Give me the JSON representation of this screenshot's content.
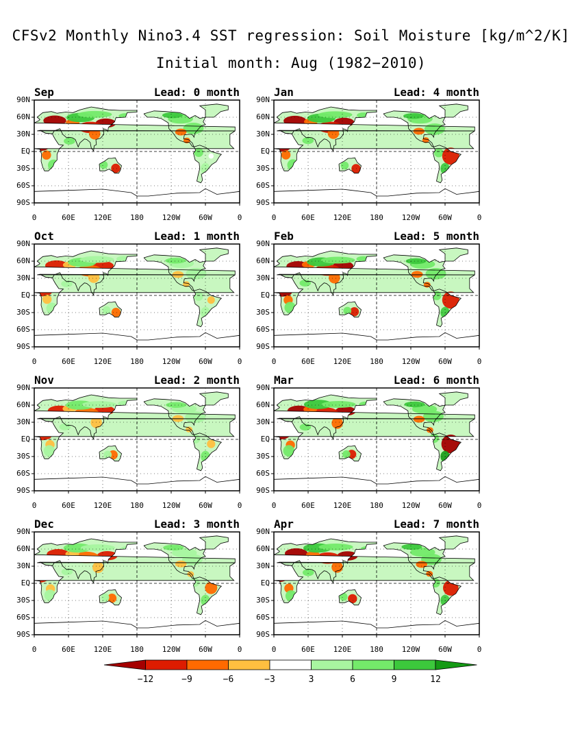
{
  "title": "CFSv2 Monthly Nino3.4 SST regression: Soil Moisture [kg/m^2/K]",
  "subtitle": "Initial month: Aug (1982−2010)",
  "lat_labels": [
    "90N",
    "60N",
    "30N",
    "EQ",
    "30S",
    "60S",
    "90S"
  ],
  "lon_labels": [
    "0",
    "60E",
    "120E",
    "180",
    "120W",
    "60W",
    "0"
  ],
  "panels": [
    {
      "month": "Sep",
      "lead": "Lead: 0 month",
      "intensity": 1.0,
      "sa_dry": 0.15
    },
    {
      "month": "Jan",
      "lead": "Lead: 4 month",
      "intensity": 1.0,
      "sa_dry": 0.9
    },
    {
      "month": "Oct",
      "lead": "Lead: 1 month",
      "intensity": 0.9,
      "sa_dry": 0.3
    },
    {
      "month": "Feb",
      "lead": "Lead: 5 month",
      "intensity": 1.0,
      "sa_dry": 0.9
    },
    {
      "month": "Nov",
      "lead": "Lead: 2 month",
      "intensity": 0.8,
      "sa_dry": 0.35
    },
    {
      "month": "Mar",
      "lead": "Lead: 6 month",
      "intensity": 1.0,
      "sa_dry": 1.0
    },
    {
      "month": "Dec",
      "lead": "Lead: 3 month",
      "intensity": 0.8,
      "sa_dry": 0.6
    },
    {
      "month": "Apr",
      "lead": "Lead: 7 month",
      "intensity": 1.0,
      "sa_dry": 0.8
    }
  ],
  "colorbar": {
    "ticks": [
      "−12",
      "−9",
      "−6",
      "−3",
      "3",
      "6",
      "9",
      "12"
    ],
    "colors": [
      "#a50000",
      "#dd1c00",
      "#ff6a00",
      "#ffbf40",
      "#ffffff",
      "#a8f5a0",
      "#74ea6a",
      "#3cc83c",
      "#159a15"
    ]
  }
}
